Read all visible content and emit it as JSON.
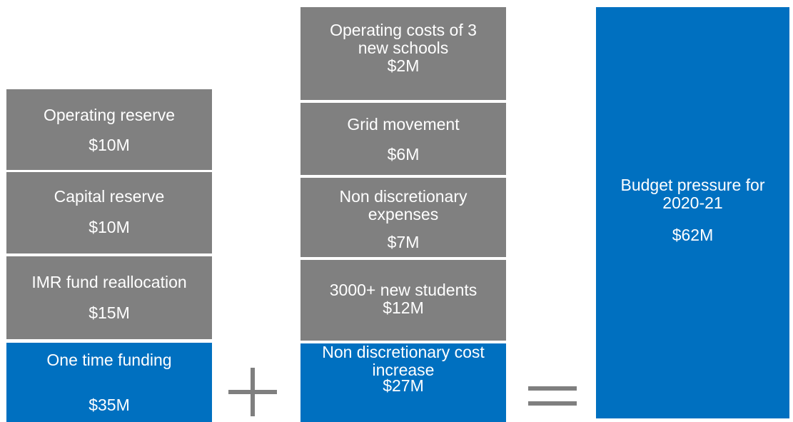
{
  "columns": [
    {
      "boxes": [
        {
          "label": [
            "Operating reserve"
          ],
          "amount": "$10M"
        },
        {
          "label": [
            "Capital reserve"
          ],
          "amount": "$10M"
        },
        {
          "label": [
            "IMR fund reallocation"
          ],
          "amount": "$15M"
        },
        {
          "label": [
            "One time funding"
          ],
          "amount": "$35M"
        }
      ]
    },
    {
      "boxes": [
        {
          "label": [
            "Operating costs of 3",
            "new schools"
          ],
          "amount": "$2M"
        },
        {
          "label": [
            "Grid movement"
          ],
          "amount": "$6M"
        },
        {
          "label": [
            "Non discretionary",
            "expenses"
          ],
          "amount": "$7M"
        },
        {
          "label": [
            "3000+ new students"
          ],
          "amount": "$12M"
        },
        {
          "label": [
            "Non discretionary cost",
            "increase"
          ],
          "amount": "$27M"
        }
      ]
    },
    {
      "boxes": [
        {
          "label": [
            "Budget pressure for",
            "2020-21"
          ],
          "amount": "$62M"
        }
      ]
    }
  ]
}
